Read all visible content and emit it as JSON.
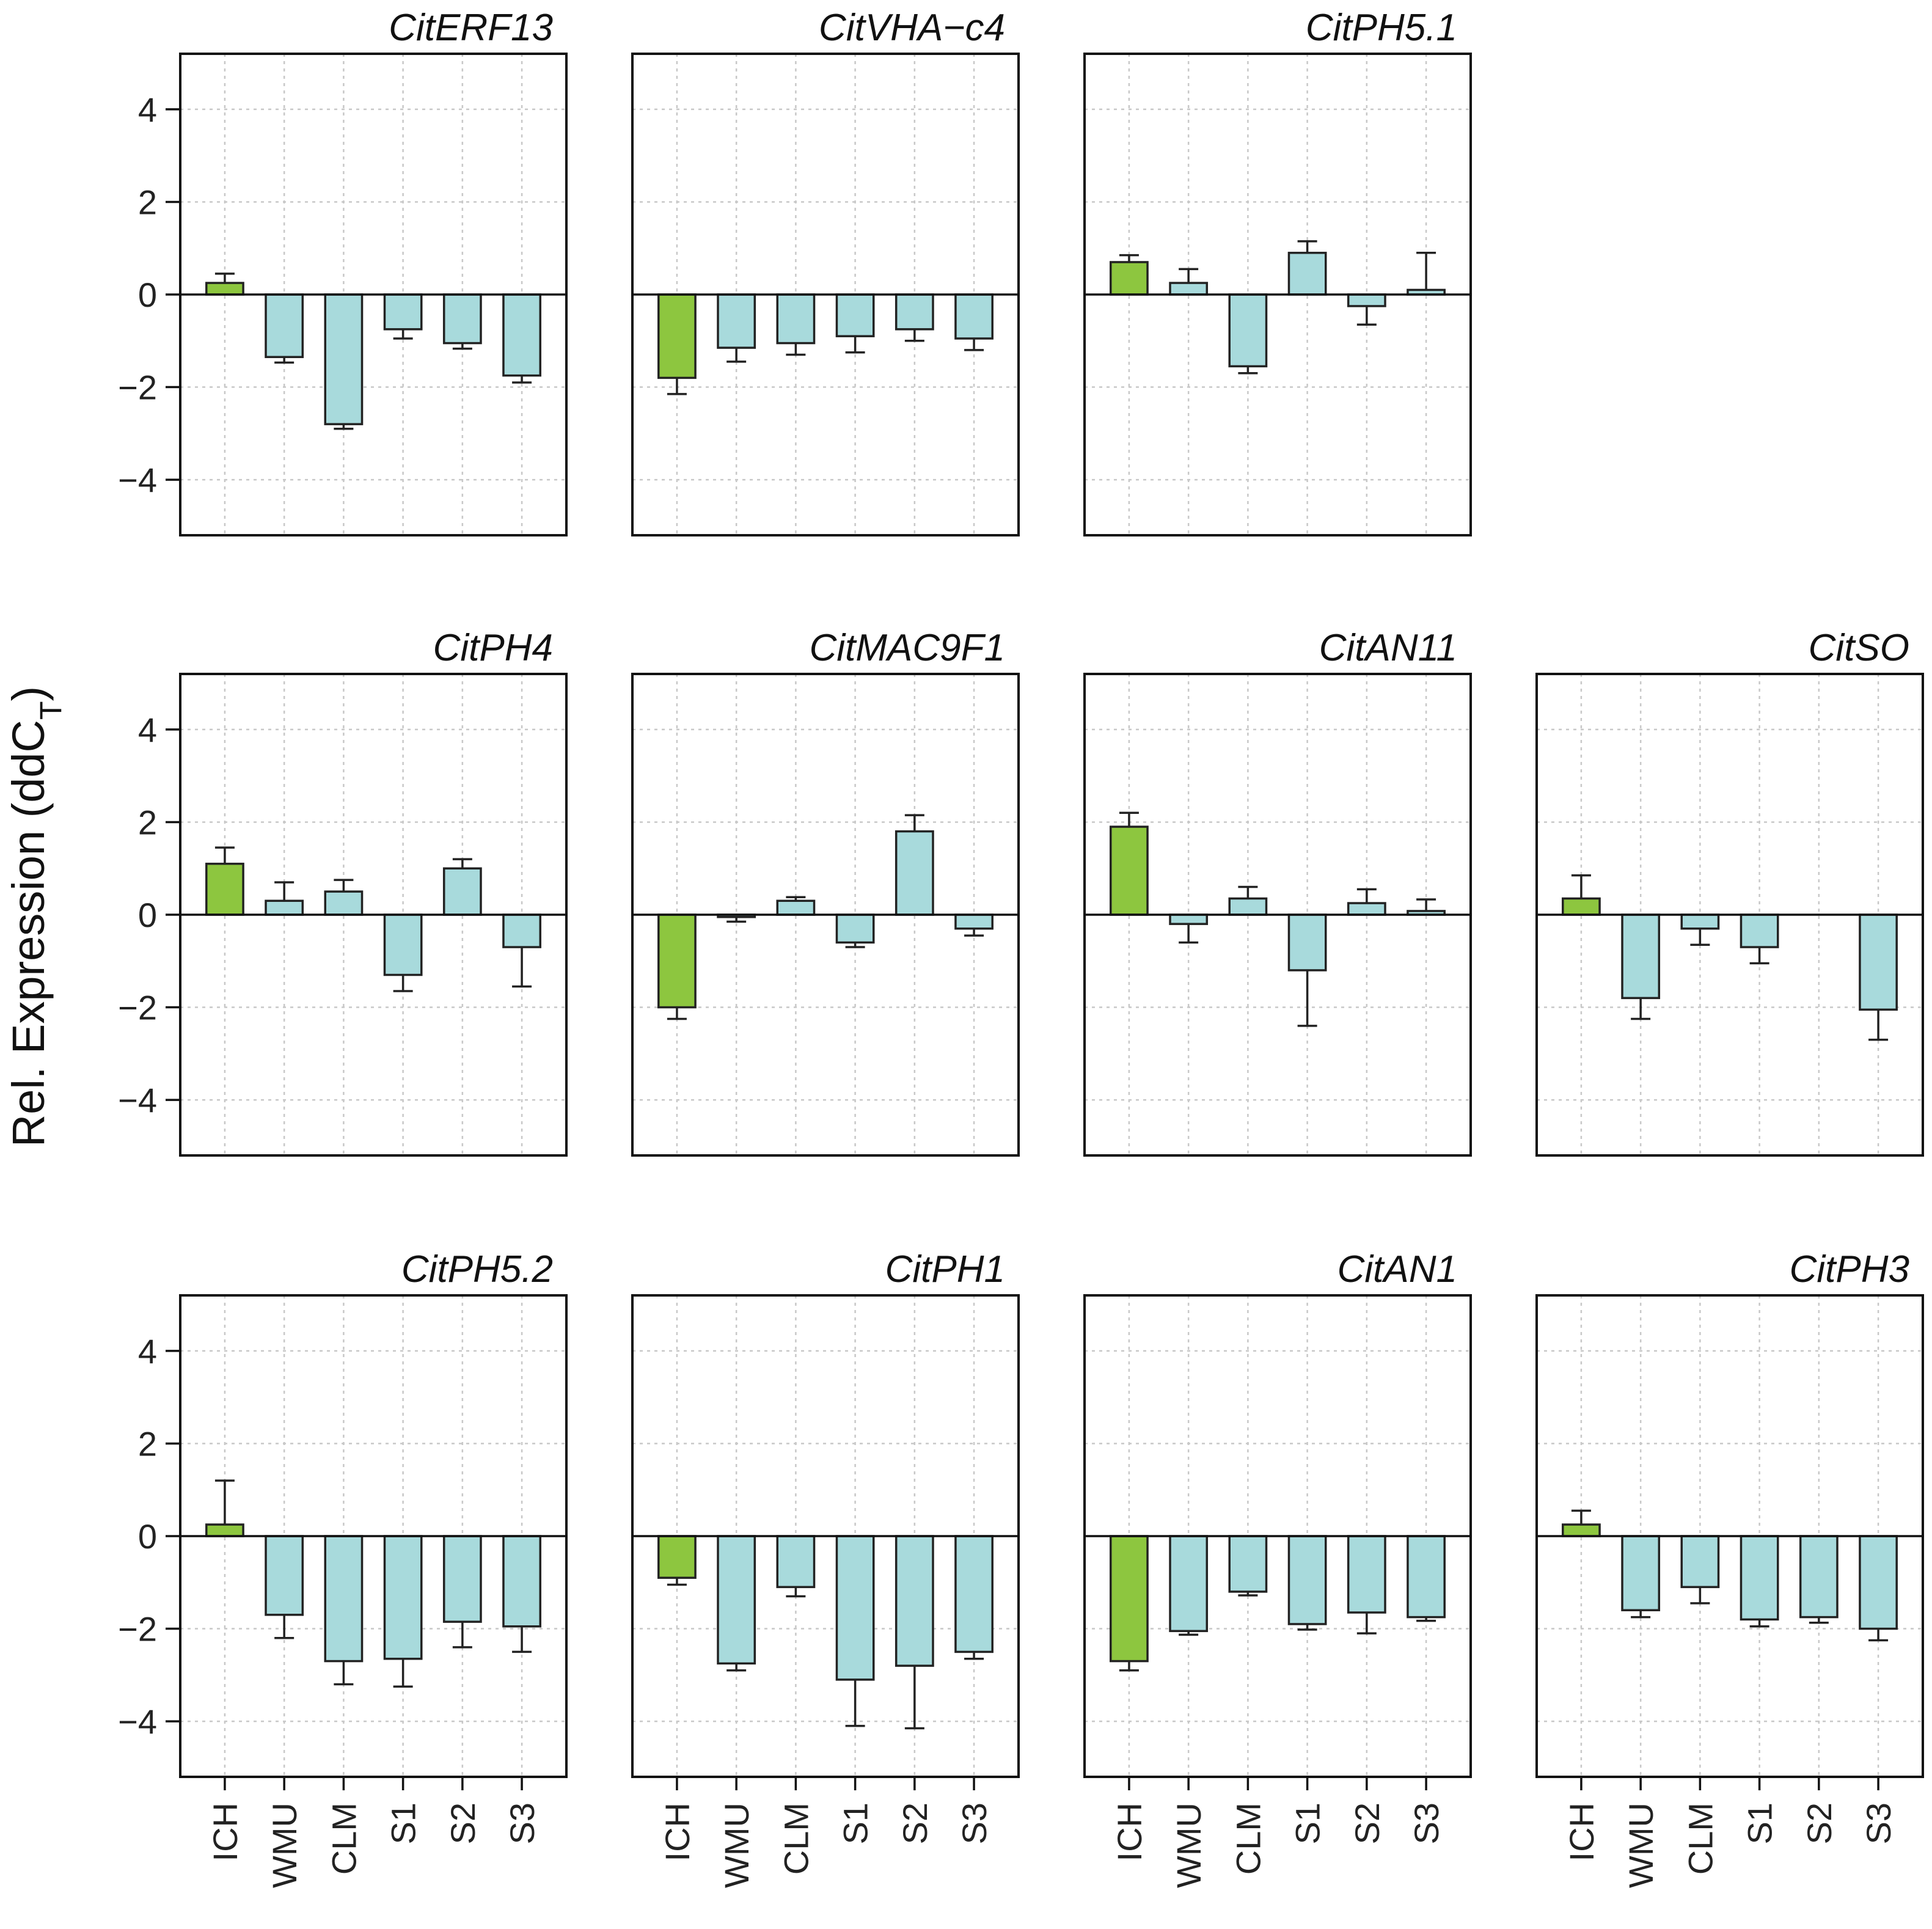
{
  "chart_data": {
    "type": "bar",
    "ylabel": "Rel. Expression (ddC",
    "ylabel_sub": "T",
    "ylabel_close": ")",
    "ylim": [
      -5.2,
      5.2
    ],
    "yticks": [
      4,
      2,
      0,
      -2,
      -4
    ],
    "ytick_labels": [
      "4",
      "2",
      "0",
      "−2",
      "−4"
    ],
    "categories": [
      "ICH",
      "WMU",
      "CLM",
      "S1",
      "S2",
      "S3"
    ],
    "colors": {
      "highlight": "#8dc63f",
      "other": "#a8dadc",
      "edge": "#222222",
      "grid": "#c8c8c8"
    },
    "panels": [
      {
        "title": "CitERF13",
        "row": 0,
        "col": 0,
        "values": [
          0.25,
          -1.35,
          -2.8,
          -0.75,
          -1.05,
          -1.75
        ],
        "errors": [
          0.2,
          0.12,
          0.1,
          0.2,
          0.12,
          0.15
        ]
      },
      {
        "title": "CitVHA−c4",
        "row": 0,
        "col": 1,
        "values": [
          -1.8,
          -1.15,
          -1.05,
          -0.9,
          -0.75,
          -0.95
        ],
        "errors": [
          0.35,
          0.3,
          0.25,
          0.35,
          0.25,
          0.25
        ]
      },
      {
        "title": "CitPH5.1",
        "row": 0,
        "col": 2,
        "values": [
          0.7,
          0.25,
          -1.55,
          0.9,
          -0.25,
          0.1
        ],
        "errors": [
          0.15,
          0.3,
          0.15,
          0.25,
          0.4,
          0.8
        ]
      },
      {
        "title": "CitPH4",
        "row": 1,
        "col": 0,
        "values": [
          1.1,
          0.3,
          0.5,
          -1.3,
          1.0,
          -0.7
        ],
        "errors": [
          0.35,
          0.4,
          0.25,
          0.35,
          0.2,
          0.85
        ]
      },
      {
        "title": "CitMAC9F1",
        "row": 1,
        "col": 1,
        "values": [
          -2.0,
          -0.05,
          0.3,
          -0.6,
          1.8,
          -0.3
        ],
        "errors": [
          0.25,
          0.1,
          0.08,
          0.1,
          0.35,
          0.15
        ]
      },
      {
        "title": "CitAN11",
        "row": 1,
        "col": 2,
        "values": [
          1.9,
          -0.2,
          0.35,
          -1.2,
          0.25,
          0.08
        ],
        "errors": [
          0.3,
          0.4,
          0.25,
          1.2,
          0.3,
          0.25
        ]
      },
      {
        "title": "CitSO",
        "row": 1,
        "col": 3,
        "values": [
          0.35,
          -1.8,
          -0.3,
          -0.7,
          0.0,
          -2.05
        ],
        "errors": [
          0.5,
          0.45,
          0.35,
          0.35,
          0.0,
          0.65
        ]
      },
      {
        "title": "CitPH5.2",
        "row": 2,
        "col": 0,
        "values": [
          0.25,
          -1.7,
          -2.7,
          -2.65,
          -1.85,
          -1.95
        ],
        "errors": [
          0.95,
          0.5,
          0.5,
          0.6,
          0.55,
          0.55
        ]
      },
      {
        "title": "CitPH1",
        "row": 2,
        "col": 1,
        "values": [
          -0.9,
          -2.75,
          -1.1,
          -3.1,
          -2.8,
          -2.5
        ],
        "errors": [
          0.15,
          0.15,
          0.2,
          1.0,
          1.35,
          0.15
        ]
      },
      {
        "title": "CitAN1",
        "row": 2,
        "col": 2,
        "values": [
          -2.7,
          -2.05,
          -1.2,
          -1.9,
          -1.65,
          -1.75
        ],
        "errors": [
          0.2,
          0.08,
          0.08,
          0.12,
          0.45,
          0.08
        ]
      },
      {
        "title": "CitPH3",
        "row": 2,
        "col": 3,
        "values": [
          0.25,
          -1.6,
          -1.1,
          -1.8,
          -1.75,
          -2.0
        ],
        "errors": [
          0.3,
          0.15,
          0.35,
          0.15,
          0.12,
          0.25
        ]
      }
    ]
  }
}
